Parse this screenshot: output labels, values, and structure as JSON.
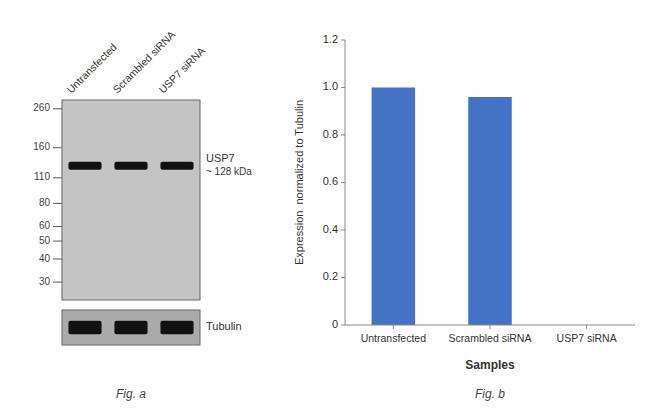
{
  "chart_data": [
    {
      "type": "blot",
      "title": "Fig. a",
      "categories": [
        "Untransfected",
        "Scrambled siRNA",
        "USP7 siRNA"
      ],
      "series": [
        {
          "name": "USP7",
          "color": "#111111",
          "values": [
            128,
            128,
            128
          ]
        },
        {
          "name": "Tubulin",
          "color": "#111111"
        }
      ],
      "annotations": [
        "~ 128 kDa"
      ],
      "log": "y",
      "ylim": [
        24,
        290
      ],
      "yticks": [
        260,
        160,
        110,
        80,
        60,
        50,
        40,
        30
      ]
    },
    {
      "type": "bar",
      "title": "Fig. b",
      "categories": [
        "Untransfected",
        "Scrambled siRNA",
        "USP7 siRNA"
      ],
      "values": [
        1.0,
        0.96,
        0.0
      ],
      "color": "#4472c4",
      "xlabel": "Samples",
      "ylabel": "Expression  normalized to Tubulin",
      "ylim": [
        0,
        1.2
      ],
      "yticks": [
        0,
        0.2,
        0.4,
        0.6,
        0.8,
        {
          "value": 1.0,
          "label": "1.0"
        },
        1.2
      ],
      "grid": false
    }
  ]
}
